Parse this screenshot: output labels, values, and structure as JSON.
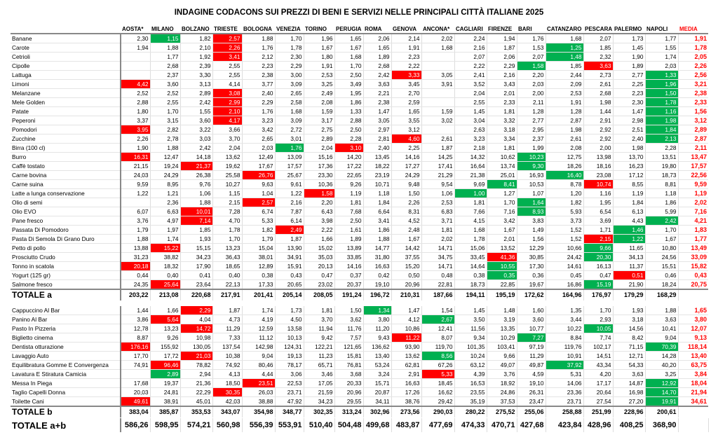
{
  "title": "INDAGINE CODACONS SUI PREZZI DI BENI E SERVIZI NELLE PRINCIPALI CITTÀ ITALIANE 2025",
  "columns": [
    "AOSTA*",
    "MILANO",
    "BOLZANO",
    "TRIESTE",
    "BOLOGNA",
    "VENEZIA",
    "TORINO",
    "PERUGIA",
    "ROMA",
    "GENOVA",
    "ANCONA*",
    "CAGLIARI",
    "FIRENZE",
    "BARI",
    "CATANZARO",
    "PESCARA",
    "PALERMO",
    "NAPOLI"
  ],
  "media_label": "MEDIA",
  "colors": {
    "high": "#ff0000",
    "low": "#00b050",
    "media": "#ff0000"
  },
  "section_a": [
    {
      "label": "Banane",
      "values": [
        "2,30",
        "1,15",
        "1,82",
        "2,57",
        "1,88",
        "1,70",
        "1,96",
        "1,65",
        "2,06",
        "2,14",
        "2,02",
        "2,24",
        "1,94",
        "1,76",
        "1,68",
        "2,07",
        "1,73",
        "1,77"
      ],
      "hl": {
        "1": "g",
        "3": "r"
      },
      "media": "1,91"
    },
    {
      "label": "Carote",
      "values": [
        "1,94",
        "1,88",
        "2,10",
        "2,26",
        "1,76",
        "1,78",
        "1,67",
        "1,67",
        "1,65",
        "1,91",
        "1,68",
        "2,16",
        "1,87",
        "1,53",
        "1,25",
        "1,85",
        "1,45",
        "1,55"
      ],
      "hl": {
        "3": "r",
        "14": "g"
      },
      "media": "1,78"
    },
    {
      "label": "Cetrioli",
      "values": [
        "",
        "1,77",
        "1,92",
        "3,41",
        "2,12",
        "2,30",
        "1,80",
        "1,68",
        "1,89",
        "2,23",
        "",
        "2,07",
        "2,06",
        "2,07",
        "1,48",
        "2,32",
        "1,90",
        "1,74"
      ],
      "hl": {
        "3": "r",
        "14": "g"
      },
      "media": "2,05"
    },
    {
      "label": "Cipolle",
      "values": [
        "",
        "2,68",
        "2,39",
        "2,55",
        "2,23",
        "2,29",
        "1,91",
        "1,70",
        "2,68",
        "2,22",
        "",
        "2,22",
        "2,29",
        "1,58",
        "1,85",
        "3,63",
        "1,89",
        "2,03"
      ],
      "hl": {
        "13": "g",
        "15": "r"
      },
      "media": "2,26"
    },
    {
      "label": "Lattuga",
      "values": [
        "",
        "2,37",
        "3,30",
        "2,55",
        "2,38",
        "3,00",
        "2,53",
        "2,50",
        "2,42",
        "3,33",
        "3,05",
        "2,41",
        "2,16",
        "2,20",
        "2,44",
        "2,73",
        "2,77",
        "1,33"
      ],
      "hl": {
        "9": "r",
        "17": "g"
      },
      "media": "2,56"
    },
    {
      "label": "Limoni",
      "values": [
        "4,42",
        "3,60",
        "3,13",
        "4,14",
        "3,77",
        "3,09",
        "3,25",
        "3,49",
        "3,63",
        "3,45",
        "3,91",
        "3,52",
        "3,43",
        "2,03",
        "2,09",
        "2,61",
        "2,25",
        "1,96"
      ],
      "hl": {
        "0": "r",
        "17": "g"
      },
      "media": "3,21"
    },
    {
      "label": "Melanzane",
      "values": [
        "2,52",
        "2,52",
        "2,89",
        "3,08",
        "2,40",
        "2,65",
        "2,49",
        "1,95",
        "2,21",
        "2,70",
        "",
        "2,04",
        "2,01",
        "2,00",
        "2,53",
        "2,68",
        "2,23",
        "1,50"
      ],
      "hl": {
        "3": "r",
        "17": "g"
      },
      "media": "2,38"
    },
    {
      "label": "Mele Golden",
      "values": [
        "2,88",
        "2,55",
        "2,42",
        "2,99",
        "2,29",
        "2,58",
        "2,08",
        "1,86",
        "2,38",
        "2,59",
        "",
        "2,55",
        "2,33",
        "2,11",
        "1,91",
        "1,98",
        "2,30",
        "1,78"
      ],
      "hl": {
        "3": "r",
        "17": "g"
      },
      "media": "2,33"
    },
    {
      "label": "Patate",
      "values": [
        "1,80",
        "1,70",
        "1,55",
        "2,10",
        "1,76",
        "1,68",
        "1,59",
        "1,33",
        "1,47",
        "1,65",
        "1,59",
        "1,45",
        "1,81",
        "1,28",
        "1,28",
        "1,44",
        "1,47",
        "1,16"
      ],
      "hl": {
        "3": "r",
        "17": "g"
      },
      "media": "1,56"
    },
    {
      "label": "Peperoni",
      "values": [
        "3,37",
        "3,15",
        "3,60",
        "4,17",
        "3,23",
        "3,09",
        "3,17",
        "2,88",
        "3,05",
        "3,55",
        "3,02",
        "3,04",
        "3,32",
        "2,77",
        "2,87",
        "2,91",
        "2,98",
        "1,98"
      ],
      "hl": {
        "3": "r",
        "17": "g"
      },
      "media": "3,12"
    },
    {
      "label": "Pomodori",
      "values": [
        "3,95",
        "2,82",
        "3,22",
        "3,66",
        "3,42",
        "2,72",
        "2,75",
        "2,50",
        "2,97",
        "3,12",
        "",
        "2,63",
        "3,18",
        "2,95",
        "1,98",
        "2,92",
        "2,51",
        "1,84"
      ],
      "hl": {
        "0": "r",
        "17": "g"
      },
      "media": "2,89"
    },
    {
      "label": "Zucchine",
      "values": [
        "2,26",
        "2,78",
        "3,03",
        "3,70",
        "2,65",
        "3,01",
        "2,89",
        "2,28",
        "2,81",
        "4,60",
        "2,61",
        "3,23",
        "3,34",
        "2,37",
        "2,61",
        "2,92",
        "2,40",
        "2,13"
      ],
      "hl": {
        "9": "r",
        "17": "g"
      },
      "media": "2,87"
    },
    {
      "label": "Birra (100 cl)",
      "values": [
        "1,90",
        "1,88",
        "2,42",
        "2,04",
        "2,03",
        "1,76",
        "2,04",
        "3,10",
        "2,40",
        "2,25",
        "1,87",
        "2,18",
        "1,81",
        "1,99",
        "2,08",
        "2,00",
        "1,98",
        "2,28"
      ],
      "hl": {
        "5": "g",
        "7": "r"
      },
      "media": "2,11"
    },
    {
      "label": "Burro",
      "values": [
        "16,31",
        "12,47",
        "14,18",
        "13,62",
        "12,49",
        "13,09",
        "15,16",
        "14,20",
        "13,45",
        "14,16",
        "14,25",
        "14,32",
        "10,62",
        "10,23",
        "12,75",
        "13,98",
        "13,70",
        "13,51"
      ],
      "hl": {
        "0": "r",
        "13": "g"
      },
      "media": "13,47"
    },
    {
      "label": "Caffè tostato",
      "values": [
        "21,15",
        "19,24",
        "21,37",
        "19,62",
        "17,67",
        "17,57",
        "17,36",
        "17,22",
        "18,22",
        "17,27",
        "17,41",
        "16,64",
        "13,74",
        "9,30",
        "18,26",
        "18,16",
        "16,23",
        "19,80"
      ],
      "hl": {
        "2": "r",
        "13": "g"
      },
      "media": "17,57"
    },
    {
      "label": "Carne bovina",
      "values": [
        "24,03",
        "24,29",
        "26,38",
        "25,58",
        "26,76",
        "25,67",
        "23,30",
        "22,65",
        "23,19",
        "24,29",
        "21,29",
        "21,38",
        "25,01",
        "16,93",
        "16,40",
        "23,08",
        "17,12",
        "18,73"
      ],
      "hl": {
        "4": "r",
        "14": "g"
      },
      "media": "22,56"
    },
    {
      "label": "Carne suina",
      "values": [
        "9,59",
        "8,95",
        "9,76",
        "10,27",
        "9,63",
        "9,61",
        "10,36",
        "9,26",
        "10,71",
        "9,48",
        "9,54",
        "9,69",
        "8,41",
        "10,53",
        "8,78",
        "10,74",
        "8,55",
        "8,81"
      ],
      "hl": {
        "12": "g",
        "15": "r"
      },
      "media": "9,59"
    },
    {
      "label": "Latte a lunga conservazione",
      "values": [
        "1,22",
        "1,21",
        "1,06",
        "1,15",
        "1,04",
        "1,22",
        "1,58",
        "1,19",
        "1,18",
        "1,50",
        "1,06",
        "1,00",
        "1,27",
        "1,07",
        "1,20",
        "1,16",
        "1,19",
        "1,18"
      ],
      "hl": {
        "6": "r",
        "11": "g"
      },
      "media": "1,19"
    },
    {
      "label": "Olio di semi",
      "values": [
        "",
        "2,36",
        "1,88",
        "2,15",
        "2,57",
        "2,16",
        "2,20",
        "1,81",
        "1,84",
        "2,26",
        "2,53",
        "1,81",
        "1,70",
        "1,64",
        "1,82",
        "1,95",
        "1,84",
        "1,86"
      ],
      "hl": {
        "4": "r",
        "13": "g"
      },
      "media": "2,02"
    },
    {
      "label": "Olio EVO",
      "values": [
        "6,07",
        "6,63",
        "10,01",
        "7,28",
        "6,74",
        "7,87",
        "6,43",
        "7,68",
        "6,64",
        "8,31",
        "6,83",
        "7,66",
        "7,16",
        "8,93",
        "5,93",
        "6,54",
        "6,13",
        "5,99"
      ],
      "hl": {
        "2": "r",
        "13": "g"
      },
      "media": "7,16"
    },
    {
      "label": "Pane fresco",
      "values": [
        "3,76",
        "4,97",
        "7,14",
        "4,70",
        "5,33",
        "6,14",
        "3,98",
        "2,50",
        "3,41",
        "4,52",
        "3,71",
        "4,15",
        "3,42",
        "3,83",
        "3,73",
        "3,69",
        "4,43",
        "2,42"
      ],
      "hl": {
        "2": "r",
        "17": "g"
      },
      "media": "4,21"
    },
    {
      "label": "Passata Di Pomodoro",
      "values": [
        "1,79",
        "1,97",
        "1,85",
        "1,78",
        "1,82",
        "2,49",
        "2,22",
        "1,61",
        "1,86",
        "2,48",
        "1,81",
        "1,68",
        "1,67",
        "1,49",
        "1,52",
        "1,71",
        "1,46",
        "1,70"
      ],
      "hl": {
        "5": "r",
        "16": "g"
      },
      "media": "1,83"
    },
    {
      "label": "Pasta Di Semola Di Grano Duro",
      "values": [
        "1,88",
        "1,74",
        "1,93",
        "1,70",
        "1,79",
        "1,87",
        "1,66",
        "1,89",
        "1,88",
        "1,67",
        "2,02",
        "1,78",
        "2,01",
        "1,56",
        "1,52",
        "2,15",
        "1,22",
        "1,67"
      ],
      "hl": {
        "15": "r",
        "16": "g"
      },
      "media": "1,77"
    },
    {
      "label": "Petto di pollo",
      "values": [
        "13,88",
        "15,22",
        "15,15",
        "13,23",
        "15,04",
        "13,90",
        "15,02",
        "13,89",
        "14,77",
        "14,42",
        "14,71",
        "15,06",
        "13,52",
        "12,29",
        "10,66",
        "9,66",
        "11,65",
        "10,80"
      ],
      "hl": {
        "1": "r",
        "15": "g"
      },
      "media": "13,49"
    },
    {
      "label": "Prosciutto Crudo",
      "values": [
        "31,23",
        "38,82",
        "34,23",
        "36,43",
        "38,01",
        "34,91",
        "35,03",
        "33,85",
        "31,80",
        "37,55",
        "34,75",
        "33,45",
        "41,36",
        "30,85",
        "24,42",
        "20,30",
        "34,13",
        "24,56"
      ],
      "hl": {
        "12": "r",
        "15": "g"
      },
      "media": "33,09"
    },
    {
      "label": "Tonno in scatola",
      "values": [
        "20,18",
        "18,32",
        "17,90",
        "18,65",
        "12,89",
        "15,91",
        "20,13",
        "14,16",
        "16,63",
        "15,20",
        "14,71",
        "14,64",
        "10,55",
        "17,30",
        "14,61",
        "16,13",
        "11,37",
        "15,51"
      ],
      "hl": {
        "0": "r",
        "12": "g"
      },
      "media": "15,82"
    },
    {
      "label": "Yogurt (125 gr)",
      "values": [
        "0,44",
        "0,40",
        "0,41",
        "0,40",
        "0,38",
        "0,43",
        "0,47",
        "0,37",
        "0,42",
        "0,50",
        "0,48",
        "0,38",
        "0,35",
        "0,36",
        "0,45",
        "0,47",
        "0,51",
        "0,46"
      ],
      "hl": {
        "12": "g",
        "16": "r"
      },
      "media": "0,43"
    },
    {
      "label": "Salmone fresco",
      "values": [
        "24,35",
        "25,64",
        "23,64",
        "22,13",
        "17,33",
        "20,65",
        "23,02",
        "20,37",
        "19,10",
        "20,96",
        "22,81",
        "18,73",
        "22,85",
        "19,67",
        "16,86",
        "15,19",
        "21,90",
        "18,24"
      ],
      "hl": {
        "1": "r",
        "15": "g"
      },
      "media": "20,75"
    }
  ],
  "totale_a": {
    "label": "TOTALE a",
    "values": [
      "203,22",
      "213,08",
      "220,68",
      "217,91",
      "201,41",
      "205,14",
      "208,05",
      "191,24",
      "196,72",
      "210,31",
      "187,66",
      "194,11",
      "195,19",
      "172,62",
      "164,96",
      "176,97",
      "179,29",
      "168,29"
    ]
  },
  "section_b": [
    {
      "label": "Cappuccino Al Bar",
      "values": [
        "1,44",
        "1,66",
        "2,29",
        "1,87",
        "1,74",
        "1,73",
        "1,81",
        "1,50",
        "1,34",
        "1,47",
        "1,54",
        "1,45",
        "1,48",
        "1,60",
        "1,35",
        "1,70",
        "1,93",
        "1,88"
      ],
      "hl": {
        "2": "r",
        "8": "g"
      },
      "media": "1,65"
    },
    {
      "label": "Panino Al Bar",
      "values": [
        "3,86",
        "5,64",
        "4,04",
        "4,73",
        "4,19",
        "4,50",
        "3,70",
        "3,62",
        "3,80",
        "4,12",
        "2,67",
        "3,50",
        "3,19",
        "3,60",
        "3,44",
        "2,93",
        "3,18",
        "3,63"
      ],
      "hl": {
        "1": "r",
        "10": "g"
      },
      "media": "3,80"
    },
    {
      "label": "Pasto In Pizzeria",
      "values": [
        "12,78",
        "13,23",
        "14,72",
        "11,29",
        "12,59",
        "13,58",
        "11,94",
        "11,76",
        "11,20",
        "10,86",
        "12,41",
        "11,56",
        "13,35",
        "10,77",
        "10,22",
        "10,05",
        "14,56",
        "10,41"
      ],
      "hl": {
        "2": "r",
        "15": "g"
      },
      "media": "12,07"
    },
    {
      "label": "Biglietto cinema",
      "values": [
        "8,87",
        "9,26",
        "10,98",
        "7,33",
        "11,12",
        "10,13",
        "9,42",
        "7,57",
        "9,43",
        "11,22",
        "8,07",
        "9,34",
        "10,29",
        "7,27",
        "8,84",
        "7,74",
        "8,42",
        "9,04"
      ],
      "hl": {
        "9": "r",
        "13": "g"
      },
      "media": "9,13"
    },
    {
      "label": "Dentista otturazione",
      "values": [
        "176,16",
        "155,92",
        "130,05",
        "137,54",
        "142,98",
        "124,31",
        "122,21",
        "121,65",
        "136,62",
        "93,90",
        "119,70",
        "101,35",
        "103,41",
        "97,19",
        "119,76",
        "102,17",
        "71,15",
        "70,39"
      ],
      "hl": {
        "0": "r",
        "17": "g"
      },
      "media": "118,14"
    },
    {
      "label": "Lavaggio Auto",
      "values": [
        "17,70",
        "17,72",
        "21,03",
        "10,38",
        "9,04",
        "19,13",
        "11,23",
        "15,81",
        "13,40",
        "13,62",
        "8,56",
        "10,24",
        "9,66",
        "11,29",
        "10,91",
        "14,51",
        "12,71",
        "14,28"
      ],
      "hl": {
        "2": "r",
        "10": "g"
      },
      "media": "13,40"
    },
    {
      "label": "Equilibratura Gomme E Convergenza",
      "values": [
        "74,91",
        "96,46",
        "78,82",
        "74,92",
        "80,46",
        "78,17",
        "65,71",
        "76,81",
        "53,24",
        "62,81",
        "67,26",
        "63,12",
        "49,07",
        "49,87",
        "37,92",
        "43,34",
        "54,33",
        "40,20"
      ],
      "hl": {
        "1": "r",
        "14": "g"
      },
      "media": "63,75"
    },
    {
      "label": "Lavatura E Stiratura Camicia",
      "values": [
        "",
        "2,89",
        "2,94",
        "4,13",
        "4,44",
        "3,06",
        "3,46",
        "3,68",
        "3,24",
        "2,91",
        "5,33",
        "4,39",
        "3,76",
        "4,59",
        "5,31",
        "4,20",
        "3,63",
        "3,25"
      ],
      "hl": {
        "1": "g",
        "10": "r"
      },
      "media": "3,84"
    },
    {
      "label": "Messa In Piega",
      "values": [
        "17,68",
        "19,37",
        "21,36",
        "18,50",
        "23,51",
        "22,53",
        "17,05",
        "20,33",
        "15,71",
        "16,63",
        "18,45",
        "16,53",
        "18,92",
        "19,10",
        "14,06",
        "17,17",
        "14,87",
        "12,92"
      ],
      "hl": {
        "4": "r",
        "17": "g"
      },
      "media": "18,04"
    },
    {
      "label": "Taglio Capelli Donna",
      "values": [
        "20,03",
        "24,81",
        "22,29",
        "30,35",
        "26,03",
        "23,71",
        "21,59",
        "20,96",
        "20,87",
        "17,26",
        "16,62",
        "23,55",
        "24,86",
        "26,31",
        "23,36",
        "20,64",
        "16,98",
        "14,70"
      ],
      "hl": {
        "3": "r",
        "17": "g"
      },
      "media": "21,94"
    },
    {
      "label": "Toilette Cani",
      "values": [
        "49,61",
        "38,91",
        "45,01",
        "42,03",
        "38,88",
        "47,92",
        "34,23",
        "29,55",
        "34,11",
        "38,76",
        "29,42",
        "35,19",
        "37,53",
        "23,47",
        "23,71",
        "27,54",
        "27,20",
        "19,91"
      ],
      "hl": {
        "0": "r",
        "17": "g"
      },
      "media": "34,61"
    }
  ],
  "totale_b": {
    "label": "TOTALE b",
    "values": [
      "383,04",
      "385,87",
      "353,53",
      "343,07",
      "354,98",
      "348,77",
      "302,35",
      "313,24",
      "302,96",
      "273,56",
      "290,03",
      "280,22",
      "275,52",
      "255,06",
      "258,88",
      "251,99",
      "228,96",
      "200,61"
    ]
  },
  "totale_ab": {
    "label": "TOTALE a+b",
    "values": [
      "586,26",
      "598,95",
      "574,21",
      "560,98",
      "556,39",
      "553,91",
      "510,40",
      "504,48",
      "499,68",
      "483,87",
      "477,69",
      "474,33",
      "470,71",
      "427,68",
      "423,84",
      "428,96",
      "408,25",
      "368,90"
    ]
  }
}
